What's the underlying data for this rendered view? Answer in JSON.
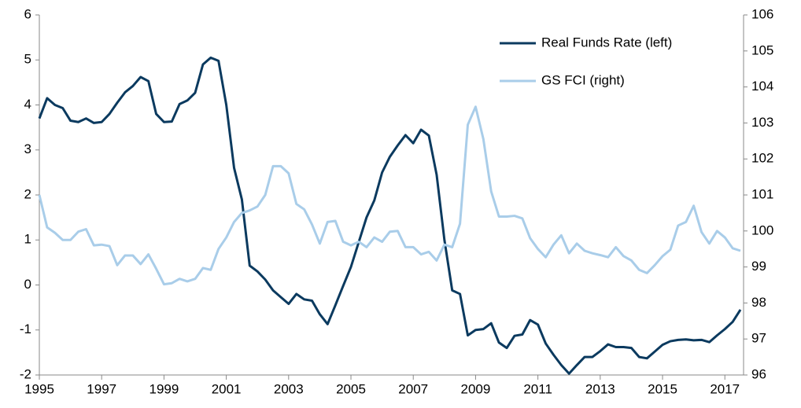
{
  "chart_data": {
    "type": "line",
    "x": [
      1995,
      1995.25,
      1995.5,
      1995.75,
      1996,
      1996.25,
      1996.5,
      1996.75,
      1997,
      1997.25,
      1997.5,
      1997.75,
      1998,
      1998.25,
      1998.5,
      1998.75,
      1999,
      1999.25,
      1999.5,
      1999.75,
      2000,
      2000.25,
      2000.5,
      2000.75,
      2001,
      2001.25,
      2001.5,
      2001.75,
      2002,
      2002.25,
      2002.5,
      2002.75,
      2003,
      2003.25,
      2003.5,
      2003.75,
      2004,
      2004.25,
      2004.5,
      2004.75,
      2005,
      2005.25,
      2005.5,
      2005.75,
      2006,
      2006.25,
      2006.5,
      2006.75,
      2007,
      2007.25,
      2007.5,
      2007.75,
      2008,
      2008.25,
      2008.5,
      2008.75,
      2009,
      2009.25,
      2009.5,
      2009.75,
      2010,
      2010.25,
      2010.5,
      2010.75,
      2011,
      2011.25,
      2011.5,
      2011.75,
      2012,
      2012.25,
      2012.5,
      2012.75,
      2013,
      2013.25,
      2013.5,
      2013.75,
      2014,
      2014.25,
      2014.5,
      2014.75,
      2015,
      2015.25,
      2015.5,
      2015.75,
      2016,
      2016.25,
      2016.5,
      2016.75,
      2017,
      2017.25,
      2017.5
    ],
    "series": [
      {
        "name": "Real Funds Rate (left)",
        "color": "#0b3a5f",
        "axis": "y",
        "values": [
          3.7,
          4.15,
          4.0,
          3.93,
          3.65,
          3.62,
          3.7,
          3.6,
          3.62,
          3.8,
          4.05,
          4.28,
          4.42,
          4.62,
          4.53,
          3.8,
          3.62,
          3.63,
          4.02,
          4.1,
          4.27,
          4.9,
          5.05,
          4.98,
          4.0,
          2.6,
          1.9,
          0.43,
          0.3,
          0.12,
          -0.12,
          -0.27,
          -0.42,
          -0.2,
          -0.32,
          -0.35,
          -0.65,
          -0.87,
          -0.45,
          -0.02,
          0.4,
          0.95,
          1.5,
          1.88,
          2.5,
          2.85,
          3.1,
          3.33,
          3.15,
          3.45,
          3.32,
          2.45,
          1.0,
          -0.12,
          -0.2,
          -1.12,
          -1.0,
          -0.98,
          -0.85,
          -1.28,
          -1.4,
          -1.13,
          -1.1,
          -0.78,
          -0.88,
          -1.3,
          -1.55,
          -1.78,
          -1.97,
          -1.78,
          -1.6,
          -1.6,
          -1.47,
          -1.32,
          -1.38,
          -1.38,
          -1.4,
          -1.6,
          -1.63,
          -1.48,
          -1.33,
          -1.25,
          -1.22,
          -1.21,
          -1.23,
          -1.22,
          -1.27,
          -1.12,
          -0.98,
          -0.82,
          -0.55
        ]
      },
      {
        "name": "GS FCI (right)",
        "color": "#a9cde9",
        "axis": "y2",
        "values": [
          101.0,
          100.1,
          99.95,
          99.75,
          99.75,
          99.98,
          100.05,
          99.6,
          99.62,
          99.58,
          99.05,
          99.32,
          99.32,
          99.08,
          99.35,
          98.95,
          98.52,
          98.55,
          98.67,
          98.6,
          98.67,
          98.97,
          98.92,
          99.5,
          99.82,
          100.25,
          100.5,
          100.57,
          100.68,
          101.0,
          101.8,
          101.8,
          101.6,
          100.75,
          100.6,
          100.18,
          99.65,
          100.25,
          100.28,
          99.7,
          99.6,
          99.7,
          99.55,
          99.82,
          99.7,
          99.98,
          100.0,
          99.55,
          99.55,
          99.35,
          99.42,
          99.18,
          99.62,
          99.55,
          100.2,
          102.95,
          103.45,
          102.55,
          101.1,
          100.4,
          100.4,
          100.42,
          100.35,
          99.8,
          99.5,
          99.27,
          99.62,
          99.88,
          99.38,
          99.65,
          99.45,
          99.38,
          99.33,
          99.27,
          99.55,
          99.3,
          99.18,
          98.92,
          98.83,
          99.05,
          99.3,
          99.48,
          100.15,
          100.25,
          100.7,
          99.97,
          99.65,
          100.0,
          99.82,
          99.52,
          99.45
        ]
      }
    ],
    "xlim": [
      1995,
      2017.6
    ],
    "xticks": [
      1995,
      1997,
      1999,
      2001,
      2003,
      2005,
      2007,
      2009,
      2011,
      2013,
      2015,
      2017
    ],
    "ylim": [
      -2,
      6
    ],
    "yticks": [
      -2,
      -1,
      0,
      1,
      2,
      3,
      4,
      5,
      6
    ],
    "y2lim": [
      96,
      106
    ],
    "y2ticks": [
      96,
      97,
      98,
      99,
      100,
      101,
      102,
      103,
      104,
      105,
      106
    ],
    "grid": false,
    "legend": "upper right"
  }
}
